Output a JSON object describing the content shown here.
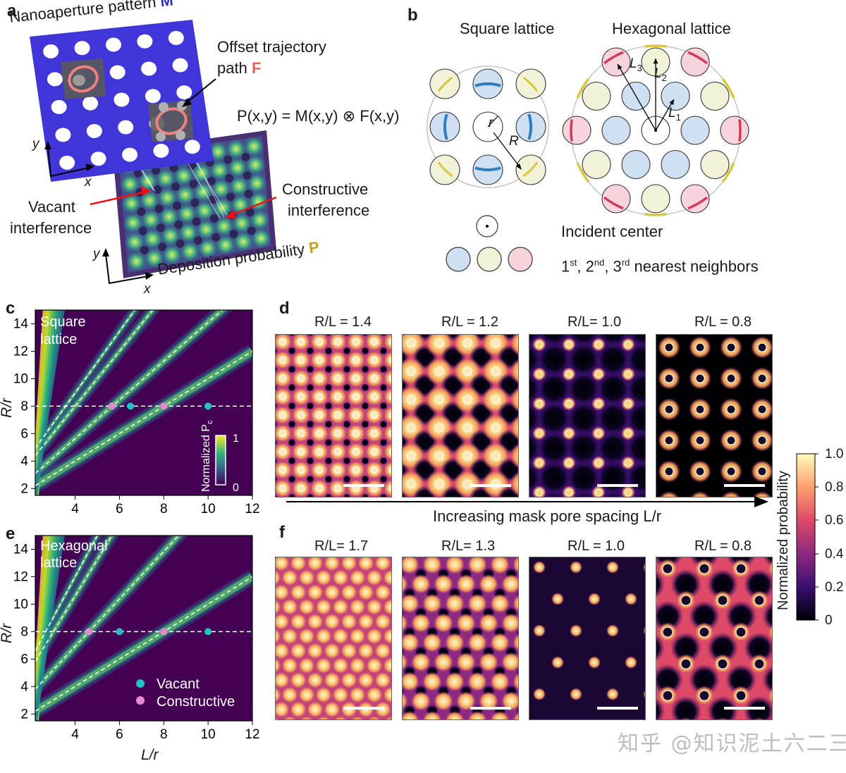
{
  "panel_a": {
    "letter": "a",
    "mask_label": "Nanoaperture pattern",
    "mask_symbol": "M",
    "trajectory_label_1": "Offset trajectory",
    "trajectory_label_2": "path",
    "trajectory_symbol": "F",
    "equation": "P(x,y) = M(x,y) ⊗ F(x,y)",
    "vacant_1": "Vacant",
    "vacant_2": "interference",
    "constructive_1": "Constructive",
    "constructive_2": "interference",
    "deposition_label": "Deposition probability",
    "deposition_symbol": "P",
    "axis_x": "x",
    "axis_y": "y"
  },
  "panel_b": {
    "letter": "b",
    "square_title": "Square lattice",
    "hex_title": "Hexagonal lattice",
    "r_label": "r",
    "R_label": "R",
    "L1": "L",
    "L1_sub": "1",
    "L2": "L",
    "L2_sub": "2",
    "L3": "L",
    "L3_sub": "3",
    "incident_center": "Incident center",
    "neighbors_1": "1",
    "neighbors_1_sup": "st",
    "neighbors_2": ", 2",
    "neighbors_2_sup": "nd",
    "neighbors_3": ", 3",
    "neighbors_3_sup": "rd",
    "neighbors_tail": " nearest neighbors",
    "colors": {
      "first": "#cfe0f2",
      "second": "#f1f2d8",
      "third": "#f7d3dc",
      "blue_arc": "#2f7ec1",
      "yellow_arc": "#d9c63a",
      "red_arc": "#d13a5a"
    }
  },
  "panel_c": {
    "letter": "c",
    "inset_1": "Square",
    "inset_2": "lattice",
    "colorbar_title": "Normalized P",
    "colorbar_sub": "c",
    "colorbar_max": "1",
    "colorbar_min": "0",
    "ylabel": "R/r",
    "yticks": [
      "14",
      "12",
      "10",
      "8",
      "6",
      "4",
      "2"
    ],
    "xticks": [
      "4",
      "6",
      "8",
      "10",
      "12"
    ]
  },
  "panel_e": {
    "letter": "e",
    "inset_1": "Hexagonal",
    "inset_2": "lattice",
    "ylabel": "R/r",
    "xlabel": "L/r",
    "yticks": [
      "14",
      "12",
      "10",
      "8",
      "6",
      "4",
      "2"
    ],
    "xticks": [
      "4",
      "6",
      "8",
      "10",
      "12"
    ],
    "legend_vacant": "Vacant",
    "legend_constructive": "Constructive"
  },
  "panel_d": {
    "letter": "d",
    "titles": [
      "R/L = 1.4",
      "R/L = 1.2",
      "R/L= 1.0",
      "R/L = 0.8"
    ]
  },
  "panel_f": {
    "letter": "f",
    "titles": [
      "R/L= 1.7",
      "R/L= 1.3",
      "R/L = 1.0",
      "R/L = 0.8"
    ]
  },
  "arrow_label": "Increasing mask pore spacing L/r",
  "colorbar": {
    "label": "Normalized probability",
    "ticks": [
      "1.0",
      "0.8",
      "0.6",
      "0.4",
      "0.2",
      "0"
    ]
  },
  "watermark": "知乎 @知识泥土六二三",
  "chart_data": [
    {
      "type": "heatmap",
      "panel": "c",
      "title": "",
      "xlabel": "L/r",
      "ylabel": "R/r",
      "xlim": [
        2.2,
        12
      ],
      "ylim": [
        1.5,
        15
      ],
      "dashed_lines": [
        {
          "slope": 1.41,
          "intercept": 0
        },
        {
          "slope": 2.0,
          "intercept": 0
        },
        {
          "slope": 2.24,
          "intercept": 0
        },
        {
          "slope": 1.0,
          "intercept": 0
        },
        {
          "y": 8
        }
      ],
      "points": [
        {
          "x": 5.66,
          "y": 8,
          "kind": "Constructive"
        },
        {
          "x": 6.5,
          "y": 8,
          "kind": "Vacant"
        },
        {
          "x": 8,
          "y": 8,
          "kind": "Constructive"
        },
        {
          "x": 10,
          "y": 8,
          "kind": "Vacant"
        }
      ]
    },
    {
      "type": "heatmap",
      "panel": "e",
      "title": "",
      "xlabel": "L/r",
      "ylabel": "R/r",
      "xlim": [
        2.2,
        12
      ],
      "ylim": [
        1.5,
        15
      ],
      "points": [
        {
          "x": 4.62,
          "y": 8,
          "kind": "Constructive"
        },
        {
          "x": 6,
          "y": 8,
          "kind": "Vacant"
        },
        {
          "x": 8,
          "y": 8,
          "kind": "Constructive"
        },
        {
          "x": 10,
          "y": 8,
          "kind": "Vacant"
        }
      ],
      "legend": [
        "Vacant",
        "Constructive"
      ]
    }
  ]
}
